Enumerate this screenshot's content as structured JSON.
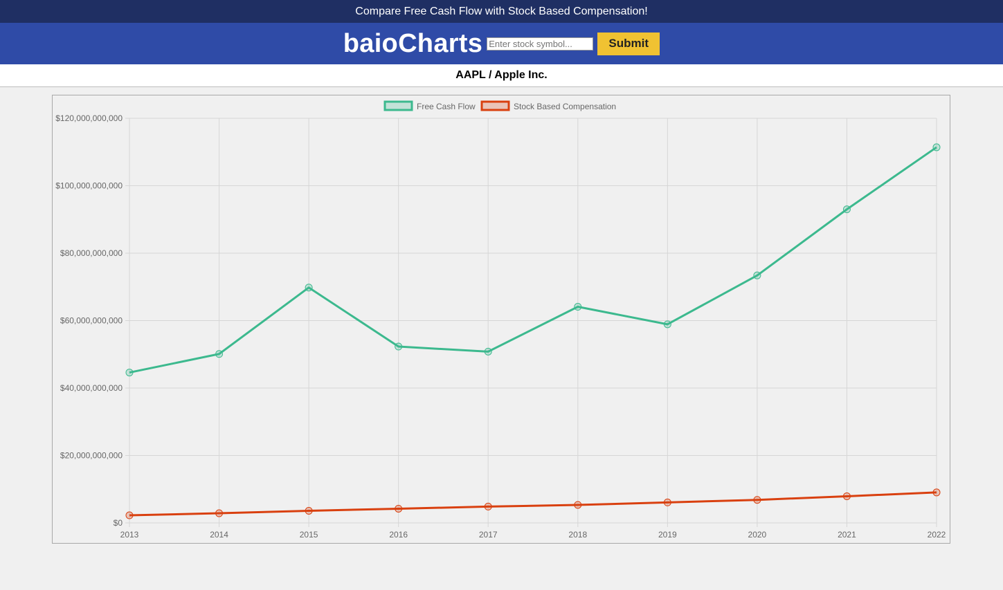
{
  "banner": {
    "text": "Compare Free Cash Flow with Stock Based Compensation!"
  },
  "header": {
    "brand": "baioCharts",
    "search_placeholder": "Enter stock symbol...",
    "submit_label": "Submit"
  },
  "subtitle": "AAPL / Apple Inc.",
  "colors": {
    "fcf": "#3cb98e",
    "sbc": "#d9400f",
    "banner": "#1f2f63",
    "header": "#2f4ba7",
    "button": "#f0c232"
  },
  "chart_data": {
    "type": "line",
    "x": [
      "2013",
      "2014",
      "2015",
      "2016",
      "2017",
      "2018",
      "2019",
      "2020",
      "2021",
      "2022"
    ],
    "series": [
      {
        "name": "Free Cash Flow",
        "values": [
          44600000000,
          50100000000,
          69800000000,
          52300000000,
          50800000000,
          64100000000,
          58900000000,
          73400000000,
          93000000000,
          111400000000
        ]
      },
      {
        "name": "Stock Based Compensation",
        "values": [
          2250000000,
          2860000000,
          3590000000,
          4210000000,
          4840000000,
          5340000000,
          6070000000,
          6830000000,
          7910000000,
          9040000000
        ]
      }
    ],
    "yticks": [
      {
        "value": 0,
        "label": "$0"
      },
      {
        "value": 20000000000,
        "label": "$20,000,000,000"
      },
      {
        "value": 40000000000,
        "label": "$40,000,000,000"
      },
      {
        "value": 60000000000,
        "label": "$60,000,000,000"
      },
      {
        "value": 80000000000,
        "label": "$80,000,000,000"
      },
      {
        "value": 100000000000,
        "label": "$100,000,000,000"
      },
      {
        "value": 120000000000,
        "label": "$120,000,000,000"
      }
    ],
    "ylim": [
      0,
      120000000000
    ],
    "grid": true,
    "legend": "top-center"
  }
}
